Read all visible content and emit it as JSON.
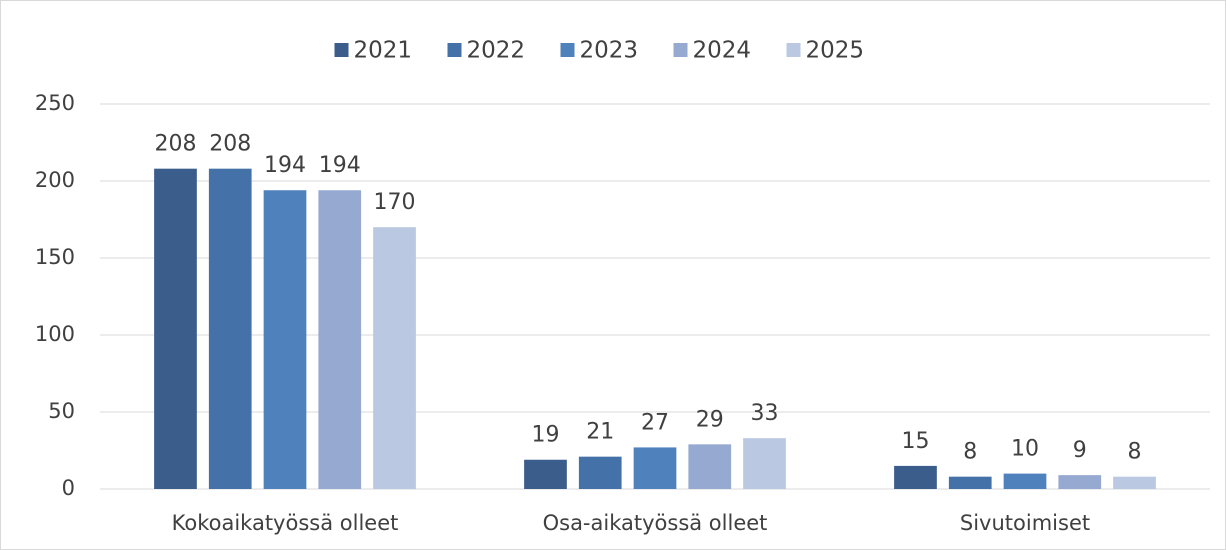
{
  "chart_data": {
    "type": "bar",
    "categories": [
      "Kokoaikatyössä olleet",
      "Osa-aikatyössä olleet",
      "Sivutoimiset"
    ],
    "series": [
      {
        "name": "2021",
        "color": "#3a5d8c",
        "values": [
          208,
          19,
          15
        ]
      },
      {
        "name": "2022",
        "color": "#4472a8",
        "values": [
          208,
          21,
          8
        ]
      },
      {
        "name": "2023",
        "color": "#4f81bd",
        "values": [
          194,
          27,
          10
        ]
      },
      {
        "name": "2024",
        "color": "#95a9d1",
        "values": [
          194,
          29,
          9
        ]
      },
      {
        "name": "2025",
        "color": "#bac8e2",
        "values": [
          170,
          33,
          8
        ]
      }
    ],
    "ylim": [
      0,
      250
    ],
    "yticks": [
      0,
      50,
      100,
      150,
      200,
      250
    ],
    "grid": true,
    "legend": "top"
  }
}
